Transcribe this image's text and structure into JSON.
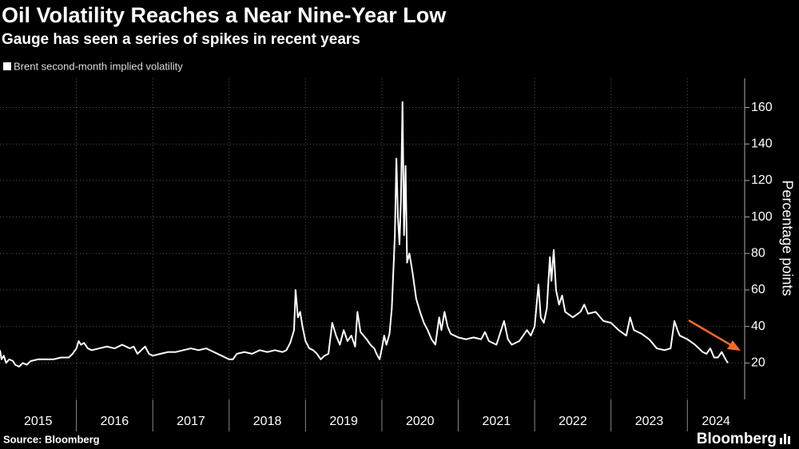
{
  "chart_data": {
    "type": "line",
    "title": "Oil Volatility Reaches a Near Nine-Year Low",
    "subtitle": "Gauge has seen a series of spikes in recent years",
    "y_axis_label": "Percentage points",
    "source": "Source: Bloomberg",
    "brand": "Bloomberg",
    "x": [
      2015.0,
      2015.02,
      2015.05,
      2015.08,
      2015.12,
      2015.17,
      2015.2,
      2015.25,
      2015.3,
      2015.35,
      2015.4,
      2015.5,
      2015.6,
      2015.7,
      2015.8,
      2015.9,
      2015.95,
      2016.0,
      2016.03,
      2016.06,
      2016.1,
      2016.15,
      2016.2,
      2016.3,
      2016.4,
      2016.5,
      2016.6,
      2016.7,
      2016.75,
      2016.8,
      2016.85,
      2016.9,
      2016.95,
      2017.0,
      2017.1,
      2017.2,
      2017.3,
      2017.4,
      2017.5,
      2017.6,
      2017.7,
      2017.8,
      2017.9,
      2018.0,
      2018.05,
      2018.1,
      2018.2,
      2018.3,
      2018.4,
      2018.5,
      2018.6,
      2018.7,
      2018.75,
      2018.8,
      2018.85,
      2018.87,
      2018.9,
      2018.93,
      2018.96,
      2019.0,
      2019.05,
      2019.1,
      2019.15,
      2019.2,
      2019.25,
      2019.3,
      2019.35,
      2019.4,
      2019.45,
      2019.5,
      2019.55,
      2019.6,
      2019.65,
      2019.68,
      2019.72,
      2019.8,
      2019.85,
      2019.9,
      2019.93,
      2019.97,
      2020.0,
      2020.03,
      2020.06,
      2020.1,
      2020.13,
      2020.15,
      2020.17,
      2020.19,
      2020.21,
      2020.23,
      2020.25,
      2020.27,
      2020.29,
      2020.31,
      2020.33,
      2020.36,
      2020.4,
      2020.45,
      2020.5,
      2020.55,
      2020.6,
      2020.65,
      2020.7,
      2020.75,
      2020.78,
      2020.82,
      2020.86,
      2020.9,
      2020.95,
      2021.0,
      2021.1,
      2021.2,
      2021.3,
      2021.35,
      2021.4,
      2021.5,
      2021.6,
      2021.65,
      2021.7,
      2021.8,
      2021.9,
      2021.95,
      2022.0,
      2022.05,
      2022.08,
      2022.12,
      2022.16,
      2022.2,
      2022.22,
      2022.25,
      2022.28,
      2022.32,
      2022.36,
      2022.4,
      2022.5,
      2022.6,
      2022.65,
      2022.7,
      2022.8,
      2022.9,
      2023.0,
      2023.1,
      2023.2,
      2023.25,
      2023.3,
      2023.4,
      2023.5,
      2023.6,
      2023.7,
      2023.78,
      2023.83,
      2023.87,
      2023.9,
      2024.0,
      2024.1,
      2024.15,
      2024.2,
      2024.25,
      2024.3,
      2024.35,
      2024.4,
      2024.45,
      2024.5,
      2024.53
    ],
    "series": [
      {
        "name": "Brent second-month implied volatility",
        "color": "#ffffff",
        "values": [
          27,
          22,
          24,
          20,
          22,
          21,
          19,
          18,
          20,
          19,
          21,
          22,
          22,
          22,
          23,
          23,
          25,
          28,
          32,
          30,
          31,
          28,
          27,
          28,
          29,
          28,
          30,
          28,
          29,
          25,
          27,
          29,
          25,
          24,
          25,
          26,
          26,
          27,
          28,
          27,
          28,
          26,
          24,
          22,
          22,
          25,
          26,
          25,
          27,
          26,
          27,
          26,
          27,
          31,
          38,
          60,
          45,
          48,
          40,
          32,
          28,
          27,
          25,
          22,
          24,
          25,
          42,
          35,
          30,
          38,
          32,
          35,
          29,
          48,
          37,
          33,
          30,
          28,
          25,
          22,
          28,
          35,
          30,
          36,
          50,
          70,
          90,
          132,
          100,
          85,
          110,
          163,
          90,
          128,
          75,
          80,
          70,
          55,
          48,
          42,
          38,
          33,
          30,
          45,
          38,
          48,
          40,
          36,
          35,
          34,
          33,
          34,
          33,
          37,
          32,
          30,
          43,
          33,
          30,
          32,
          38,
          35,
          40,
          63,
          45,
          42,
          50,
          78,
          65,
          82,
          60,
          52,
          57,
          48,
          45,
          48,
          52,
          47,
          48,
          43,
          42,
          38,
          35,
          45,
          38,
          36,
          33,
          28,
          27,
          28,
          43,
          38,
          35,
          33,
          30,
          28,
          26,
          25,
          28,
          23,
          23,
          26,
          22,
          20
        ]
      }
    ],
    "xlim": [
      2015,
      2024.75
    ],
    "xticks": [
      {
        "value": 2015,
        "label": "2015"
      },
      {
        "value": 2016,
        "label": "2016"
      },
      {
        "value": 2017,
        "label": "2017"
      },
      {
        "value": 2018,
        "label": "2018"
      },
      {
        "value": 2019,
        "label": "2019"
      },
      {
        "value": 2020,
        "label": "2020"
      },
      {
        "value": 2021,
        "label": "2021"
      },
      {
        "value": 2022,
        "label": "2022"
      },
      {
        "value": 2023,
        "label": "2023"
      },
      {
        "value": 2024,
        "label": "2024"
      }
    ],
    "ylim": [
      0,
      176
    ],
    "yticks": [
      20,
      40,
      60,
      80,
      100,
      120,
      140,
      160
    ],
    "grid": true
  }
}
